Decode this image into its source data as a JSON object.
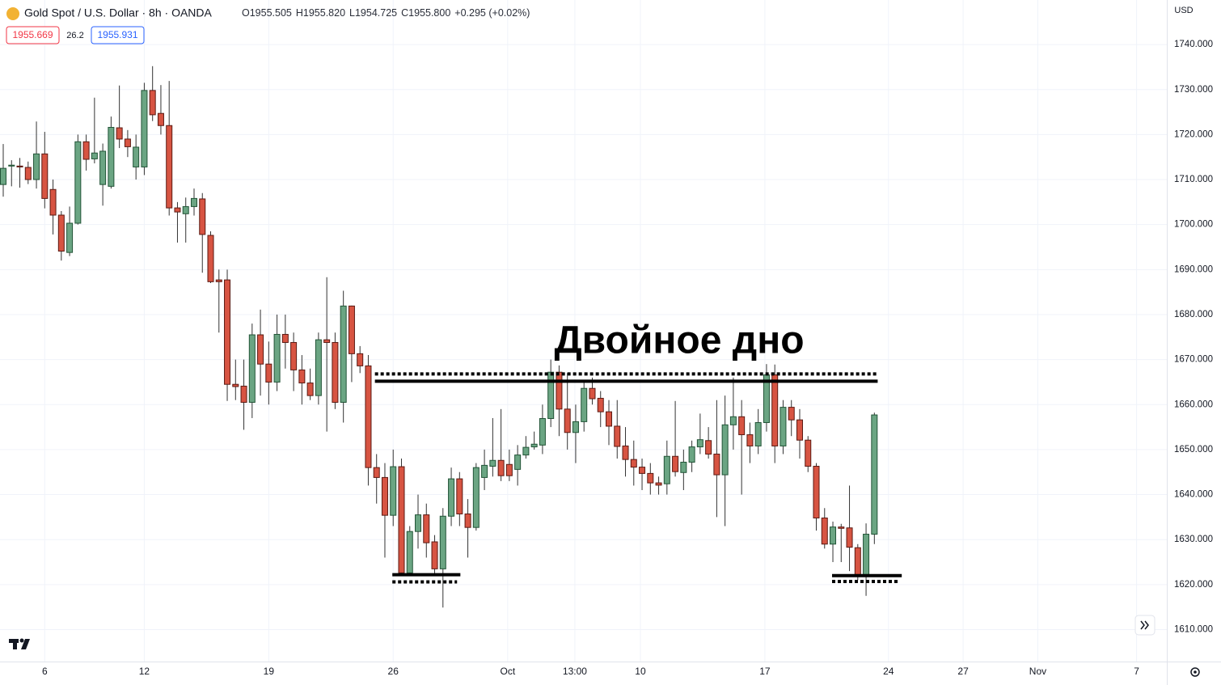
{
  "chart_data": {
    "type": "candlestick",
    "title": "Gold Spot / U.S. Dollar · 8h · OANDA",
    "legend_values": [
      "O1955.505",
      "H1955.820",
      "L1954.725",
      "C1955.800",
      "+0.295 (+0.02%)"
    ],
    "price_boxes": [
      "1955.669",
      "26.2",
      "1955.931"
    ],
    "currency": "USD",
    "annotation": "Двойное дно",
    "up_color": "#6ba583",
    "down_color": "#d75442",
    "grid": true,
    "open": [
      1708.9,
      1713,
      1713,
      1712.7,
      1710,
      1715.7,
      1707.8,
      1702.1,
      1693.8,
      1700.3,
      1718.4,
      1714.6,
      1708.9,
      1708.5,
      1721.5,
      1719,
      1712.8,
      1712.8,
      1729.8,
      1724.7,
      1722,
      1703.7,
      1702.4,
      1704,
      1705.7,
      1697.6,
      1687.7,
      1687.7,
      1664.5,
      1664.1,
      1660.5,
      1675.5,
      1669,
      1665,
      1675.6,
      1673.8,
      1667.7,
      1664.8,
      1662,
      1674.4,
      1673.8,
      1660.5,
      1681.9,
      1671.3,
      1668.6,
      1646,
      1643.8,
      1635.4,
      1646.2,
      1622.6,
      1631.8,
      1635.5,
      1629.5,
      1623.5,
      1635.2,
      1643.5,
      1635.7,
      1632.7,
      1643.8,
      1646.3,
      1647.6,
      1646.7,
      1645.6,
      1648.8,
      1650.6,
      1651,
      1656.9,
      1667.2,
      1659,
      1653.8,
      1656.2,
      1663.6,
      1661.4,
      1658.4,
      1655.2,
      1650.8,
      1647.8,
      1646.1,
      1644.7,
      1642.6,
      1642.4,
      1648.5,
      1644.9,
      1647.2,
      1650.6,
      1652,
      1649,
      1644.4,
      1655.5,
      1657.3,
      1653.3,
      1650.8,
      1656,
      1666.6,
      1650.8,
      1659.4,
      1656.6,
      1652.1,
      1646.3,
      1634.8,
      1629,
      1632.8,
      1632.6,
      1628.2,
      1622.2,
      1631.2
    ],
    "high": [
      1717.9,
      1714.3,
      1714.8,
      1714,
      1722.9,
      1720.6,
      1710,
      1703,
      1704,
      1720,
      1720,
      1728.2,
      1718,
      1724,
      1730.9,
      1721,
      1720,
      1731.5,
      1735.2,
      1731,
      1731.9,
      1705,
      1706,
      1708,
      1707,
      1698.5,
      1690,
      1690,
      1670,
      1670,
      1678,
      1681.1,
      1674,
      1680,
      1680,
      1676,
      1671,
      1668,
      1676,
      1688.3,
      1676,
      1685.3,
      1682,
      1673,
      1671,
      1649,
      1647,
      1650,
      1648,
      1633,
      1640,
      1638,
      1631,
      1637,
      1646,
      1645,
      1639,
      1647,
      1650,
      1657,
      1659,
      1650,
      1651,
      1653,
      1654,
      1660,
      1670,
      1668.7,
      1667,
      1660,
      1665,
      1666,
      1663,
      1661,
      1661,
      1655,
      1652,
      1648,
      1647,
      1644,
      1652,
      1660.8,
      1650,
      1652,
      1658,
      1655,
      1661,
      1662,
      1666,
      1661,
      1656,
      1659,
      1669,
      1668.9,
      1661,
      1661,
      1659,
      1653,
      1647,
      1637,
      1634,
      1633.5,
      1642,
      1629,
      1633.6,
      1658.2
    ],
    "low": [
      1706.2,
      1708.5,
      1708.2,
      1709,
      1708,
      1703.6,
      1697.8,
      1692,
      1693,
      1700,
      1712,
      1713.6,
      1704.2,
      1708,
      1717,
      1715,
      1710,
      1711,
      1723,
      1720,
      1702,
      1696,
      1696,
      1702,
      1689.3,
      1687,
      1676,
      1660.8,
      1661,
      1654.4,
      1657,
      1662,
      1660,
      1663,
      1668,
      1663,
      1660,
      1661,
      1660,
      1654,
      1659,
      1656,
      1665,
      1667,
      1642,
      1638,
      1626,
      1633,
      1622,
      1622,
      1628,
      1626,
      1622,
      1614.9,
      1633,
      1633,
      1626,
      1632,
      1641,
      1644,
      1643,
      1643,
      1642,
      1648,
      1650,
      1649,
      1655,
      1653,
      1650,
      1647,
      1654,
      1660,
      1655,
      1651,
      1648,
      1644,
      1642,
      1641,
      1640,
      1640,
      1640,
      1644,
      1641,
      1645,
      1649,
      1648,
      1635,
      1633,
      1650,
      1640,
      1647,
      1649,
      1654,
      1647,
      1649,
      1653,
      1648,
      1645,
      1632,
      1628,
      1625,
      1625,
      1623,
      1621,
      1617.5,
      1629
    ],
    "close": [
      1712.5,
      1713.2,
      1712.8,
      1710,
      1715.7,
      1705.8,
      1702.1,
      1694.1,
      1700.3,
      1718.4,
      1714.5,
      1715.9,
      1716.3,
      1721.6,
      1719,
      1717.3,
      1717.2,
      1729.8,
      1724.4,
      1722,
      1703.7,
      1702.8,
      1704,
      1705.8,
      1697.8,
      1687.3,
      1687.3,
      1664.5,
      1664,
      1660.5,
      1675.5,
      1669,
      1665,
      1675.6,
      1673.8,
      1667.7,
      1664.8,
      1662,
      1674.4,
      1673.8,
      1660.5,
      1681.9,
      1671.3,
      1668.6,
      1646,
      1643.8,
      1635.4,
      1646.2,
      1622.6,
      1631.8,
      1635.5,
      1629.3,
      1623.5,
      1635.2,
      1643.5,
      1635.7,
      1632.7,
      1646,
      1646.5,
      1647.6,
      1644.2,
      1644.2,
      1648.8,
      1650.5,
      1651.2,
      1656.9,
      1667.2,
      1659,
      1653.8,
      1656.2,
      1663.6,
      1661.3,
      1658.4,
      1655.2,
      1650.7,
      1647.8,
      1646.1,
      1644.7,
      1642.6,
      1642.1,
      1648.5,
      1645.1,
      1647.2,
      1650.6,
      1652.2,
      1649,
      1644.4,
      1655.5,
      1657.3,
      1653.3,
      1650.8,
      1656,
      1666.6,
      1650.8,
      1659.4,
      1656.6,
      1652.1,
      1646.3,
      1634.8,
      1629,
      1632.8,
      1632.5,
      1628.3,
      1622.2,
      1631.2,
      1657.7
    ],
    "xlim": [
      -0.39,
      140.25
    ],
    "xticks": [
      {
        "value": 5,
        "label": "6"
      },
      {
        "value": 17,
        "label": "12"
      },
      {
        "value": 32,
        "label": "19"
      },
      {
        "value": 47,
        "label": "26"
      },
      {
        "value": 60.8,
        "label": "Oct"
      },
      {
        "value": 68.9,
        "label": "13:00"
      },
      {
        "value": 76.8,
        "label": "10"
      },
      {
        "value": 91.8,
        "label": "17"
      },
      {
        "value": 106.7,
        "label": "24"
      },
      {
        "value": 115.7,
        "label": "27"
      },
      {
        "value": 124.7,
        "label": "Nov"
      },
      {
        "value": 136.6,
        "label": "7"
      }
    ],
    "ylim": [
      1602.9,
      1749.9
    ],
    "yticks": [
      {
        "value": 1610,
        "label": "1610.000"
      },
      {
        "value": 1620,
        "label": "1620.000"
      },
      {
        "value": 1630,
        "label": "1630.000"
      },
      {
        "value": 1640,
        "label": "1640.000"
      },
      {
        "value": 1650,
        "label": "1650.000"
      },
      {
        "value": 1660,
        "label": "1660.000"
      },
      {
        "value": 1670,
        "label": "1670.000"
      },
      {
        "value": 1680,
        "label": "1680.000"
      },
      {
        "value": 1690,
        "label": "1690.000"
      },
      {
        "value": 1700,
        "label": "1700.000"
      },
      {
        "value": 1710,
        "label": "1710.000"
      },
      {
        "value": 1720,
        "label": "1720.000"
      },
      {
        "value": 1730,
        "label": "1730.000"
      },
      {
        "value": 1740,
        "label": "1740.000"
      }
    ],
    "levels": [
      {
        "price": 1665.2,
        "from": 44.8,
        "to": 105.4,
        "style": "solid"
      },
      {
        "price": 1666.8,
        "from": 44.8,
        "to": 105.4,
        "style": "dotted"
      },
      {
        "price": 1622.2,
        "from": 46.9,
        "to": 55.1,
        "style": "solid"
      },
      {
        "price": 1620.6,
        "from": 46.9,
        "to": 54.7,
        "style": "dotted"
      },
      {
        "price": 1622.0,
        "from": 99.9,
        "to": 108.3,
        "style": "solid"
      },
      {
        "price": 1620.7,
        "from": 99.9,
        "to": 107.9,
        "style": "dotted"
      }
    ]
  }
}
